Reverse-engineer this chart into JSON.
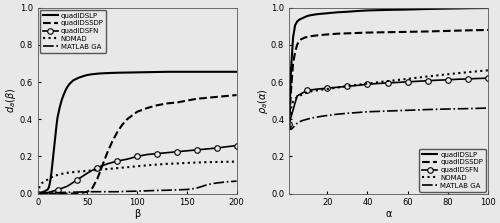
{
  "left": {
    "xlabel": "β",
    "ylabel": "d_a(β)",
    "xlim": [
      0,
      200
    ],
    "ylim": [
      0,
      1
    ],
    "xticks": [
      0,
      50,
      100,
      150,
      200
    ],
    "yticks": [
      0,
      0.2,
      0.4,
      0.6,
      0.8,
      1.0
    ],
    "series": {
      "quadIDSLP": {
        "style": "solid",
        "marker": null,
        "linewidth": 1.5,
        "color": "#000000",
        "x": [
          0,
          1,
          2,
          3,
          4,
          5,
          6,
          7,
          8,
          9,
          10,
          11,
          12,
          13,
          14,
          15,
          16,
          17,
          18,
          19,
          20,
          22,
          24,
          26,
          28,
          30,
          32,
          34,
          36,
          38,
          40,
          42,
          44,
          46,
          48,
          50,
          55,
          60,
          65,
          70,
          75,
          80,
          90,
          100,
          110,
          120,
          130,
          140,
          150,
          160,
          170,
          180,
          190,
          200
        ],
        "y": [
          0,
          0.002,
          0.003,
          0.005,
          0.007,
          0.008,
          0.01,
          0.012,
          0.015,
          0.018,
          0.022,
          0.03,
          0.05,
          0.08,
          0.12,
          0.17,
          0.22,
          0.27,
          0.32,
          0.37,
          0.41,
          0.46,
          0.5,
          0.53,
          0.555,
          0.575,
          0.59,
          0.6,
          0.61,
          0.615,
          0.62,
          0.625,
          0.628,
          0.632,
          0.635,
          0.638,
          0.642,
          0.645,
          0.647,
          0.648,
          0.649,
          0.65,
          0.651,
          0.652,
          0.653,
          0.654,
          0.655,
          0.655,
          0.655,
          0.655,
          0.655,
          0.655,
          0.655,
          0.655
        ]
      },
      "quadIDSSDP": {
        "style": "dashed",
        "marker": null,
        "linewidth": 1.5,
        "color": "#000000",
        "x": [
          0,
          5,
          10,
          15,
          20,
          25,
          30,
          35,
          40,
          45,
          50,
          55,
          60,
          65,
          70,
          75,
          80,
          85,
          90,
          95,
          100,
          110,
          120,
          130,
          140,
          150,
          160,
          170,
          180,
          190,
          200
        ],
        "y": [
          0,
          0.0,
          0.0,
          0.0,
          0.0,
          0.0,
          0.0,
          0.0,
          0.0,
          0.005,
          0.01,
          0.03,
          0.08,
          0.15,
          0.22,
          0.28,
          0.33,
          0.37,
          0.4,
          0.42,
          0.44,
          0.46,
          0.475,
          0.485,
          0.49,
          0.5,
          0.51,
          0.515,
          0.52,
          0.525,
          0.53
        ]
      },
      "quadIDSFN": {
        "style": "solid",
        "marker": "o",
        "markersize": 4,
        "linewidth": 1.2,
        "color": "#000000",
        "x": [
          0,
          10,
          20,
          30,
          40,
          50,
          60,
          70,
          80,
          90,
          100,
          110,
          120,
          130,
          140,
          150,
          160,
          170,
          180,
          190,
          200
        ],
        "y": [
          0,
          0.005,
          0.02,
          0.04,
          0.075,
          0.11,
          0.14,
          0.16,
          0.175,
          0.185,
          0.2,
          0.21,
          0.215,
          0.22,
          0.225,
          0.23,
          0.235,
          0.24,
          0.245,
          0.252,
          0.258
        ]
      },
      "NOMAD": {
        "style": "dotted",
        "marker": null,
        "linewidth": 1.5,
        "color": "#000000",
        "x": [
          0,
          2,
          4,
          6,
          8,
          10,
          12,
          14,
          16,
          18,
          20,
          25,
          30,
          35,
          40,
          50,
          60,
          70,
          80,
          90,
          100,
          110,
          120,
          130,
          140,
          150,
          160,
          170,
          180,
          190,
          200
        ],
        "y": [
          0,
          0.04,
          0.055,
          0.063,
          0.07,
          0.075,
          0.082,
          0.088,
          0.093,
          0.097,
          0.1,
          0.107,
          0.112,
          0.115,
          0.118,
          0.122,
          0.127,
          0.132,
          0.137,
          0.142,
          0.147,
          0.152,
          0.156,
          0.16,
          0.162,
          0.165,
          0.167,
          0.169,
          0.17,
          0.171,
          0.172
        ]
      },
      "MATLAB GA": {
        "style": "dashdot",
        "marker": null,
        "linewidth": 1.2,
        "color": "#000000",
        "x": [
          0,
          10,
          20,
          30,
          40,
          50,
          60,
          70,
          80,
          90,
          100,
          110,
          120,
          130,
          140,
          150,
          155,
          160,
          165,
          170,
          175,
          180,
          185,
          190,
          195,
          200
        ],
        "y": [
          0,
          0.003,
          0.005,
          0.007,
          0.008,
          0.01,
          0.01,
          0.01,
          0.01,
          0.012,
          0.013,
          0.015,
          0.017,
          0.018,
          0.02,
          0.022,
          0.025,
          0.03,
          0.038,
          0.047,
          0.053,
          0.057,
          0.06,
          0.063,
          0.065,
          0.067
        ]
      }
    }
  },
  "right": {
    "xlabel": "α",
    "ylabel": "ρ_a(α)",
    "xlim": [
      1,
      100
    ],
    "ylim": [
      0,
      1
    ],
    "xticks": [
      20,
      40,
      60,
      80,
      100
    ],
    "yticks": [
      0,
      0.2,
      0.4,
      0.6,
      0.8,
      1.0
    ],
    "series": {
      "quadIDSLP": {
        "style": "solid",
        "marker": null,
        "linewidth": 1.5,
        "color": "#000000",
        "x": [
          1,
          2,
          3,
          4,
          5,
          6,
          7,
          8,
          9,
          10,
          12,
          15,
          18,
          20,
          25,
          30,
          35,
          40,
          50,
          60,
          70,
          80,
          90,
          100
        ],
        "y": [
          0.38,
          0.67,
          0.84,
          0.905,
          0.925,
          0.935,
          0.94,
          0.945,
          0.95,
          0.955,
          0.96,
          0.965,
          0.968,
          0.97,
          0.975,
          0.978,
          0.982,
          0.985,
          0.988,
          0.99,
          0.993,
          0.995,
          0.997,
          0.998
        ]
      },
      "quadIDSSDP": {
        "style": "dashed",
        "marker": null,
        "linewidth": 1.5,
        "color": "#000000",
        "x": [
          1,
          2,
          3,
          4,
          5,
          6,
          7,
          8,
          9,
          10,
          12,
          15,
          18,
          20,
          25,
          30,
          35,
          40,
          50,
          60,
          70,
          80,
          90,
          100
        ],
        "y": [
          0.36,
          0.56,
          0.7,
          0.76,
          0.8,
          0.82,
          0.83,
          0.835,
          0.84,
          0.842,
          0.847,
          0.851,
          0.854,
          0.856,
          0.86,
          0.862,
          0.864,
          0.866,
          0.868,
          0.87,
          0.872,
          0.875,
          0.878,
          0.88
        ]
      },
      "quadIDSFN": {
        "style": "solid",
        "marker": "o",
        "markersize": 4,
        "linewidth": 1.2,
        "color": "#000000",
        "x": [
          1,
          5,
          10,
          15,
          20,
          25,
          30,
          35,
          40,
          45,
          50,
          55,
          60,
          65,
          70,
          75,
          80,
          85,
          90,
          95,
          100
        ],
        "y": [
          0.375,
          0.525,
          0.555,
          0.562,
          0.567,
          0.572,
          0.577,
          0.582,
          0.588,
          0.592,
          0.595,
          0.598,
          0.601,
          0.604,
          0.607,
          0.61,
          0.612,
          0.615,
          0.617,
          0.619,
          0.621
        ]
      },
      "NOMAD": {
        "style": "dotted",
        "marker": null,
        "linewidth": 1.5,
        "color": "#000000",
        "x": [
          1,
          2,
          3,
          4,
          5,
          6,
          7,
          8,
          9,
          10,
          12,
          15,
          18,
          20,
          25,
          30,
          35,
          40,
          50,
          60,
          70,
          80,
          90,
          100
        ],
        "y": [
          0.34,
          0.46,
          0.495,
          0.51,
          0.518,
          0.524,
          0.53,
          0.535,
          0.54,
          0.543,
          0.55,
          0.555,
          0.56,
          0.562,
          0.57,
          0.578,
          0.585,
          0.592,
          0.605,
          0.617,
          0.63,
          0.642,
          0.653,
          0.663
        ]
      },
      "MATLAB GA": {
        "style": "dashdot",
        "marker": null,
        "linewidth": 1.2,
        "color": "#000000",
        "x": [
          1,
          2,
          3,
          4,
          5,
          6,
          7,
          8,
          9,
          10,
          12,
          15,
          18,
          20,
          25,
          30,
          35,
          40,
          50,
          60,
          70,
          80,
          90,
          100
        ],
        "y": [
          0.375,
          0.345,
          0.355,
          0.368,
          0.378,
          0.385,
          0.39,
          0.394,
          0.397,
          0.4,
          0.406,
          0.412,
          0.417,
          0.42,
          0.427,
          0.432,
          0.436,
          0.44,
          0.444,
          0.448,
          0.452,
          0.455,
          0.457,
          0.46
        ]
      }
    }
  },
  "legend_order": [
    "quadIDSLP",
    "quadIDSSDP",
    "quadIDSFN",
    "NOMAD",
    "MATLAB GA"
  ],
  "legend_labels": [
    "quadIDSLP",
    "quadIDSSDP",
    "quadIDSFN",
    "NOMAD",
    "MATLAB GA"
  ],
  "bg_color": "#e8e8e8"
}
